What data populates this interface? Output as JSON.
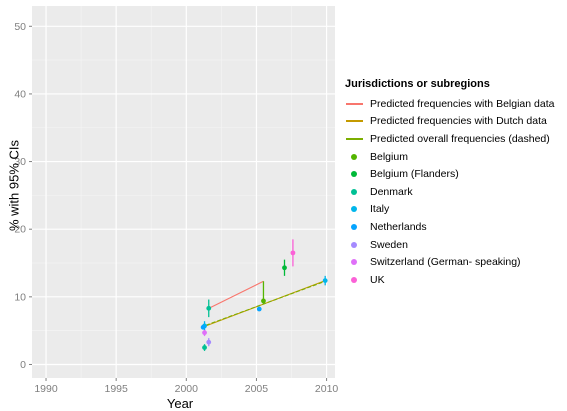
{
  "chart_data": {
    "type": "scatter",
    "xlabel": "Year",
    "ylabel": "% with 95% CIs",
    "xlim": [
      1989,
      2010.6
    ],
    "ylim": [
      -2,
      53
    ],
    "x_ticks": [
      1990,
      1995,
      2000,
      2005,
      2010
    ],
    "y_ticks": [
      0,
      10,
      20,
      30,
      40,
      50
    ],
    "grid": true,
    "background": "#ebebeb",
    "legend_position": "right",
    "legend_title": "Jurisdictions or subregions",
    "lines": [
      {
        "name": "Predicted frequencies with Belgian data",
        "color": "#f8766d",
        "dashed": false,
        "points": [
          [
            2001.6,
            8.3
          ],
          [
            2005.5,
            12.3
          ]
        ]
      },
      {
        "name": "Predicted frequencies with Dutch data",
        "color": "#c49a00",
        "dashed": false,
        "points": [
          [
            2001.4,
            5.7
          ],
          [
            2009.9,
            12.4
          ]
        ]
      },
      {
        "name": "Predicted overall frequencies (dashed)",
        "color": "#7cae00",
        "dashed": true,
        "points": [
          [
            2001.4,
            5.8
          ],
          [
            2009.9,
            12.3
          ]
        ]
      }
    ],
    "series": [
      {
        "name": "Belgium",
        "color": "#53b400",
        "points": [
          {
            "x": 2005.5,
            "y": 9.4,
            "lo": 9.0,
            "hi": 12.3
          }
        ]
      },
      {
        "name": "Belgium (Flanders)",
        "color": "#00b938",
        "points": [
          {
            "x": 2007.0,
            "y": 14.3,
            "lo": 13.1,
            "hi": 15.5
          }
        ]
      },
      {
        "name": "Denmark",
        "color": "#00c094",
        "points": [
          {
            "x": 2001.3,
            "y": 2.5,
            "lo": 2.0,
            "hi": 3.0
          },
          {
            "x": 2001.6,
            "y": 8.3,
            "lo": 7.0,
            "hi": 9.6
          }
        ]
      },
      {
        "name": "Italy",
        "color": "#00b6eb",
        "points": [
          {
            "x": 2001.3,
            "y": 5.7,
            "lo": 4.9,
            "hi": 6.4
          },
          {
            "x": 2009.9,
            "y": 12.4,
            "lo": 11.7,
            "hi": 13.1
          }
        ]
      },
      {
        "name": "Netherlands",
        "color": "#06a4ff",
        "points": [
          {
            "x": 2001.2,
            "y": 5.5,
            "lo": 5.2,
            "hi": 5.8
          },
          {
            "x": 2005.2,
            "y": 8.2,
            "lo": 7.9,
            "hi": 8.5
          }
        ]
      },
      {
        "name": "Sweden",
        "color": "#a58aff",
        "points": [
          {
            "x": 2001.6,
            "y": 3.3,
            "lo": 2.7,
            "hi": 3.9
          }
        ]
      },
      {
        "name": "Switzerland (German- speaking)",
        "color": "#df70f8",
        "points": [
          {
            "x": 2001.3,
            "y": 4.7,
            "lo": 4.2,
            "hi": 5.1
          }
        ]
      },
      {
        "name": "UK",
        "color": "#fb61d7",
        "points": [
          {
            "x": 2007.6,
            "y": 16.5,
            "lo": 14.5,
            "hi": 18.5
          }
        ]
      }
    ]
  }
}
